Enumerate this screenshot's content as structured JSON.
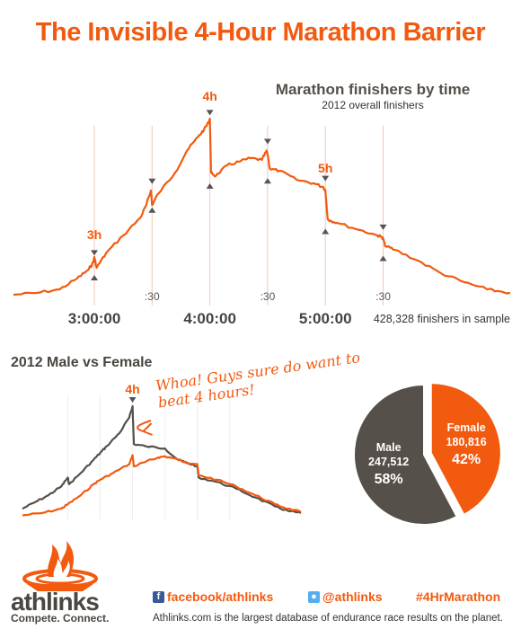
{
  "header": {
    "title": "The Invisible 4-Hour Marathon Barrier"
  },
  "chart_data": [
    {
      "type": "line",
      "title": "Marathon finishers by time",
      "subtitle": "2012 overall finishers",
      "note": "428,328 finishers in sample",
      "x_unit": "hours",
      "xlim": [
        2.3,
        6.6
      ],
      "ylim": [
        0,
        100
      ],
      "x_tick_labels": [
        {
          "x": 3.0,
          "label": "3:00:00"
        },
        {
          "x": 4.0,
          "label": "4:00:00"
        },
        {
          "x": 5.0,
          "label": "5:00:00"
        }
      ],
      "x_minor_labels": [
        {
          "x": 3.5,
          "label": ":30"
        },
        {
          "x": 4.5,
          "label": ":30"
        },
        {
          "x": 5.5,
          "label": ":30"
        }
      ],
      "annotations": [
        {
          "x": 3.0,
          "label": "3h"
        },
        {
          "x": 4.0,
          "label": "4h"
        },
        {
          "x": 5.0,
          "label": "5h"
        }
      ],
      "series": [
        {
          "color": "#f25a0f",
          "x": [
            2.3,
            2.5,
            2.7,
            2.85,
            2.95,
            2.99,
            3.0,
            3.02,
            3.1,
            3.25,
            3.4,
            3.45,
            3.49,
            3.5,
            3.55,
            3.7,
            3.8,
            3.9,
            3.95,
            3.99,
            4.0,
            4.01,
            4.05,
            4.15,
            4.25,
            4.35,
            4.45,
            4.49,
            4.5,
            4.52,
            4.6,
            4.75,
            4.9,
            4.98,
            5.0,
            5.02,
            5.1,
            5.3,
            5.45,
            5.49,
            5.5,
            5.52,
            5.6,
            5.8,
            6.0,
            6.2,
            6.4,
            6.6
          ],
          "y": [
            2,
            3,
            5,
            11,
            16,
            20,
            23,
            17,
            25,
            35,
            45,
            52,
            60,
            52,
            58,
            70,
            82,
            90,
            94,
            98,
            100,
            70,
            68,
            74,
            76,
            78,
            77,
            82,
            80,
            72,
            71,
            66,
            64,
            62,
            60,
            44,
            42,
            38,
            35,
            34,
            33,
            29,
            27,
            21,
            14,
            9,
            5,
            3
          ]
        }
      ]
    },
    {
      "type": "line",
      "title": "2012 Male vs Female",
      "xlim": [
        2.3,
        6.6
      ],
      "ylim": [
        0,
        100
      ],
      "annotations": [
        {
          "x": 4.0,
          "label": "4h"
        },
        {
          "text": "Whoa! Guys sure do want to beat 4 hours!"
        }
      ],
      "series": [
        {
          "name": "Male",
          "color": "#555049",
          "x": [
            2.3,
            2.5,
            2.7,
            2.9,
            3.0,
            3.02,
            3.2,
            3.4,
            3.5,
            3.6,
            3.8,
            3.95,
            4.0,
            4.02,
            4.2,
            4.5,
            4.7,
            4.8,
            5.0,
            5.02,
            5.3,
            5.6,
            5.9,
            6.2,
            6.4,
            6.6
          ],
          "y": [
            8,
            14,
            20,
            28,
            36,
            30,
            40,
            52,
            58,
            64,
            76,
            90,
            100,
            66,
            64,
            62,
            52,
            50,
            46,
            36,
            32,
            26,
            18,
            10,
            6,
            4
          ]
        },
        {
          "name": "Female",
          "color": "#f25a0f",
          "x": [
            2.3,
            2.6,
            2.9,
            3.0,
            3.2,
            3.4,
            3.5,
            3.7,
            3.95,
            4.0,
            4.02,
            4.2,
            4.4,
            4.5,
            4.7,
            4.8,
            5.0,
            5.02,
            5.3,
            5.6,
            5.9,
            6.2,
            6.4,
            6.6
          ],
          "y": [
            2,
            4,
            8,
            12,
            20,
            30,
            34,
            40,
            48,
            56,
            46,
            50,
            54,
            55,
            52,
            50,
            48,
            38,
            34,
            28,
            20,
            12,
            8,
            5
          ]
        }
      ]
    },
    {
      "type": "pie",
      "slices": [
        {
          "label": "Male",
          "value": 247512,
          "value_text": "247,512",
          "percent": "58%",
          "color": "#555049"
        },
        {
          "label": "Female",
          "value": 180816,
          "value_text": "180,816",
          "percent": "42%",
          "color": "#f25a0f"
        }
      ]
    }
  ],
  "footer": {
    "brand": "athlinks",
    "tagline": "Compete. Connect.",
    "facebook": "facebook/athlinks",
    "twitter": "@athlinks",
    "hashtag": "#4HrMarathon",
    "description": "Athlinks.com is the largest database of endurance race results on the planet.",
    "icons": {
      "facebook": "facebook-icon",
      "twitter": "twitter-icon",
      "logo": "flame-logo-icon"
    },
    "accent": "#f25a0f",
    "facebook_color": "#3b5998",
    "twitter_color": "#55acee"
  }
}
